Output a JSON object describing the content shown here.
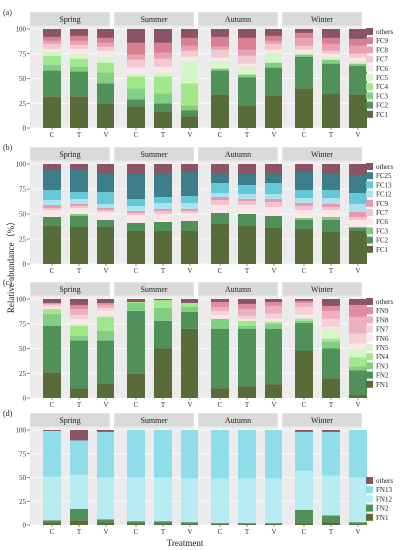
{
  "figure": {
    "ylabel": "Relative abundance（%）",
    "xlabel": "Treatment"
  },
  "chart_data": [
    {
      "type": "bar",
      "panel": "(a)",
      "facets": [
        "Spring",
        "Summer",
        "Autumn",
        "Winter"
      ],
      "categories": [
        "C",
        "T",
        "V"
      ],
      "ylim": [
        0,
        100
      ],
      "yticks": [
        0,
        25,
        50,
        75,
        100
      ],
      "grid": true,
      "stacked": true,
      "legend": {
        "placement": "right",
        "labels": [
          "others",
          "FC9",
          "FC8",
          "FC7",
          "FC6",
          "FC5",
          "FC4",
          "FC3",
          "FC2",
          "FC1"
        ],
        "colors": [
          "#8a5466",
          "#d97f92",
          "#e8a0b2",
          "#f2c8d1",
          "#fde6ea",
          "#d6f5c8",
          "#a2e88a",
          "#82cf82",
          "#4f9158",
          "#5a6b3a"
        ]
      },
      "series": [
        {
          "name": "FC1",
          "values": [
            [
              32,
              32,
              25
            ],
            [
              22,
              17,
              12
            ],
            [
              34,
              23,
              33
            ],
            [
              40,
              35,
              34
            ]
          ]
        },
        {
          "name": "FC2",
          "values": [
            [
              26,
              25,
              20
            ],
            [
              7,
              8,
              6
            ],
            [
              24,
              28,
              28
            ],
            [
              32,
              30,
              29
            ]
          ]
        },
        {
          "name": "FC3",
          "values": [
            [
              6,
              5,
              11
            ],
            [
              11,
              10,
              5
            ],
            [
              2,
              3,
              5
            ],
            [
              2,
              4,
              2
            ]
          ]
        },
        {
          "name": "FC4",
          "values": [
            [
              9,
              8,
              10
            ],
            [
              12,
              17,
              22
            ],
            [
              0,
              0,
              0
            ],
            [
              0,
              0,
              0
            ]
          ]
        },
        {
          "name": "FC5",
          "values": [
            [
              4,
              5,
              6
            ],
            [
              3,
              4,
              23
            ],
            [
              8,
              8,
              10
            ],
            [
              2,
              3,
              3
            ]
          ]
        },
        {
          "name": "FC6",
          "values": [
            [
              3,
              5,
              6
            ],
            [
              6,
              6,
              4
            ],
            [
              3,
              3,
              3
            ],
            [
              3,
              3,
              3
            ]
          ]
        },
        {
          "name": "FC7",
          "values": [
            [
              5,
              4,
              4
            ],
            [
              8,
              8,
              6
            ],
            [
              8,
              8,
              6
            ],
            [
              4,
              3,
              4
            ]
          ]
        },
        {
          "name": "FC8",
          "values": [
            [
              3,
              4,
              4
            ],
            [
              5,
              6,
              5
            ],
            [
              3,
              6,
              3
            ],
            [
              8,
              7,
              8
            ]
          ]
        },
        {
          "name": "FC9",
          "values": [
            [
              4,
              5,
              5
            ],
            [
              12,
              10,
              8
            ],
            [
              10,
              12,
              5
            ],
            [
              5,
              6,
              7
            ]
          ]
        },
        {
          "name": "others",
          "values": [
            [
              8,
              7,
              9
            ],
            [
              14,
              14,
              9
            ],
            [
              8,
              9,
              7
            ],
            [
              4,
              9,
              10
            ]
          ]
        }
      ]
    },
    {
      "type": "bar",
      "panel": "(b)",
      "facets": [
        "Spring",
        "Summer",
        "Autumn",
        "Winter"
      ],
      "categories": [
        "C",
        "T",
        "V"
      ],
      "ylim": [
        0,
        100
      ],
      "yticks": [
        0,
        25,
        50,
        75,
        100
      ],
      "grid": true,
      "stacked": true,
      "legend": {
        "placement": "right",
        "labels": [
          "others",
          "FC25",
          "FC13",
          "FC12",
          "FC9",
          "FC7",
          "FC6",
          "FC3",
          "FC2",
          "FC1"
        ],
        "colors": [
          "#8a5466",
          "#3d7e8a",
          "#64c8d9",
          "#a9e4ee",
          "#e79aae",
          "#f4c2cc",
          "#fde6ea",
          "#7fc97a",
          "#4f9158",
          "#5a6b3a"
        ]
      },
      "series": [
        {
          "name": "FC1",
          "values": [
            [
              38,
              37,
              37
            ],
            [
              33,
              33,
              33
            ],
            [
              40,
              38,
              36
            ],
            [
              35,
              32,
              33
            ]
          ]
        },
        {
          "name": "FC2",
          "values": [
            [
              9,
              11,
              7
            ],
            [
              8,
              9,
              10
            ],
            [
              11,
              12,
              12
            ],
            [
              9,
              12,
              3
            ]
          ]
        },
        {
          "name": "FC3",
          "values": [
            [
              0,
              2,
              0
            ],
            [
              0,
              0,
              0
            ],
            [
              0,
              0,
              0
            ],
            [
              2,
              3,
              1
            ]
          ]
        },
        {
          "name": "FC6",
          "values": [
            [
              7,
              6,
              8
            ],
            [
              8,
              8,
              8
            ],
            [
              8,
              9,
              9
            ],
            [
              8,
              7,
              7
            ]
          ]
        },
        {
          "name": "FC7",
          "values": [
            [
              2,
              2,
              2
            ],
            [
              2,
              3,
              2
            ],
            [
              5,
              4,
              5
            ],
            [
              4,
              3,
              3
            ]
          ]
        },
        {
          "name": "FC9",
          "values": [
            [
              3,
              2,
              2
            ],
            [
              2,
              2,
              2
            ],
            [
              3,
              2,
              3
            ],
            [
              3,
              3,
              5
            ]
          ]
        },
        {
          "name": "FC12",
          "values": [
            [
              5,
              5,
              4
            ],
            [
              5,
              6,
              6
            ],
            [
              4,
              5,
              5
            ],
            [
              5,
              6,
              8
            ]
          ]
        },
        {
          "name": "FC13",
          "values": [
            [
              10,
              7,
              12
            ],
            [
              7,
              6,
              7
            ],
            [
              10,
              9,
              11
            ],
            [
              8,
              8,
              11
            ]
          ]
        },
        {
          "name": "FC25",
          "values": [
            [
              20,
              22,
              18
            ],
            [
              26,
              24,
              24
            ],
            [
              10,
              12,
              10
            ],
            [
              18,
              16,
              18
            ]
          ]
        },
        {
          "name": "others",
          "values": [
            [
              6,
              6,
              10
            ],
            [
              9,
              9,
              8
            ],
            [
              9,
              9,
              9
            ],
            [
              8,
              10,
              11
            ]
          ]
        }
      ]
    },
    {
      "type": "bar",
      "panel": "(c)",
      "facets": [
        "Spring",
        "Summer",
        "Autumn",
        "Winter"
      ],
      "categories": [
        "C",
        "T",
        "V"
      ],
      "ylim": [
        0,
        100
      ],
      "yticks": [
        0,
        25,
        50,
        75,
        100
      ],
      "grid": true,
      "stacked": true,
      "legend": {
        "placement": "right",
        "labels": [
          "others",
          "FN9",
          "FN8",
          "FN7",
          "FN6",
          "FN5",
          "FN4",
          "FN3",
          "FN2",
          "FN1"
        ],
        "colors": [
          "#8a5466",
          "#e28aa0",
          "#eeb0bf",
          "#f6d0d8",
          "#fde6ea",
          "#d6f5c8",
          "#a2e88a",
          "#82cf82",
          "#4f9158",
          "#5a6b3a"
        ]
      },
      "series": [
        {
          "name": "FN1",
          "values": [
            [
              26,
              10,
              15
            ],
            [
              25,
              50,
              70
            ],
            [
              10,
              12,
              14
            ],
            [
              48,
              20,
              3
            ]
          ]
        },
        {
          "name": "FN2",
          "values": [
            [
              47,
              48,
              43
            ],
            [
              63,
              28,
              17
            ],
            [
              60,
              58,
              56
            ],
            [
              28,
              30,
              25
            ]
          ]
        },
        {
          "name": "FN3",
          "values": [
            [
              12,
              5,
              10
            ],
            [
              8,
              13,
              5
            ],
            [
              10,
              3,
              5
            ],
            [
              2,
              7,
              4
            ]
          ]
        },
        {
          "name": "FN4",
          "values": [
            [
              5,
              10,
              14
            ],
            [
              1,
              8,
              4
            ],
            [
              0,
              5,
              2
            ],
            [
              2,
              3,
              9
            ]
          ]
        },
        {
          "name": "FN5",
          "values": [
            [
              0,
              2,
              2
            ],
            [
              0,
              0,
              0
            ],
            [
              0,
              0,
              0
            ],
            [
              2,
              10,
              8
            ]
          ]
        },
        {
          "name": "FN6",
          "values": [
            [
              2,
              5,
              4
            ],
            [
              0,
              0,
              0
            ],
            [
              4,
              2,
              3
            ],
            [
              2,
              2,
              6
            ]
          ]
        },
        {
          "name": "FN7",
          "values": [
            [
              2,
              4,
              3
            ],
            [
              0,
              0,
              0
            ],
            [
              4,
              3,
              5
            ],
            [
              8,
              8,
              10
            ]
          ]
        },
        {
          "name": "FN8",
          "values": [
            [
              1,
              6,
              3
            ],
            [
              0,
              0,
              0
            ],
            [
              4,
              7,
              8
            ],
            [
              4,
              8,
              17
            ]
          ]
        },
        {
          "name": "FN9",
          "values": [
            [
              1,
              4,
              2
            ],
            [
              0,
              0,
              0
            ],
            [
              5,
              5,
              4
            ],
            [
              2,
              5,
              12
            ]
          ]
        },
        {
          "name": "others",
          "values": [
            [
              4,
              6,
              4
            ],
            [
              3,
              1,
              4
            ],
            [
              3,
              5,
              3
            ],
            [
              2,
              7,
              6
            ]
          ]
        }
      ]
    },
    {
      "type": "bar",
      "panel": "(d)",
      "facets": [
        "Spring",
        "Summer",
        "Autumn",
        "Winter"
      ],
      "categories": [
        "C",
        "T",
        "V"
      ],
      "ylim": [
        0,
        100
      ],
      "yticks": [
        0,
        25,
        50,
        75,
        100
      ],
      "grid": true,
      "stacked": true,
      "legend": {
        "placement": "right",
        "labels": [
          "others",
          "FN13",
          "FN12",
          "FN2",
          "FN1"
        ],
        "colors": [
          "#8a5466",
          "#8fdde8",
          "#b7ecf2",
          "#4f9158",
          "#5a6b3a"
        ]
      },
      "series": [
        {
          "name": "FN1",
          "values": [
            [
              3,
              5,
              3
            ],
            [
              2,
              2,
              1
            ],
            [
              1,
              1,
              1
            ],
            [
              2,
              3,
              1
            ]
          ]
        },
        {
          "name": "FN2",
          "values": [
            [
              2,
              12,
              3
            ],
            [
              2,
              2,
              2
            ],
            [
              1,
              1,
              1
            ],
            [
              14,
              7,
              2
            ]
          ]
        },
        {
          "name": "FN12",
          "values": [
            [
              46,
              36,
              44
            ],
            [
              46,
              46,
              46
            ],
            [
              47,
              47,
              47
            ],
            [
              41,
              42,
              47
            ]
          ]
        },
        {
          "name": "FN13",
          "values": [
            [
              48,
              36,
              48
            ],
            [
              50,
              50,
              51
            ],
            [
              51,
              51,
              51
            ],
            [
              41,
              46,
              50
            ]
          ]
        },
        {
          "name": "others",
          "values": [
            [
              1,
              11,
              2
            ],
            [
              0,
              0,
              0
            ],
            [
              0,
              0,
              0
            ],
            [
              2,
              2,
              0
            ]
          ]
        }
      ]
    }
  ]
}
